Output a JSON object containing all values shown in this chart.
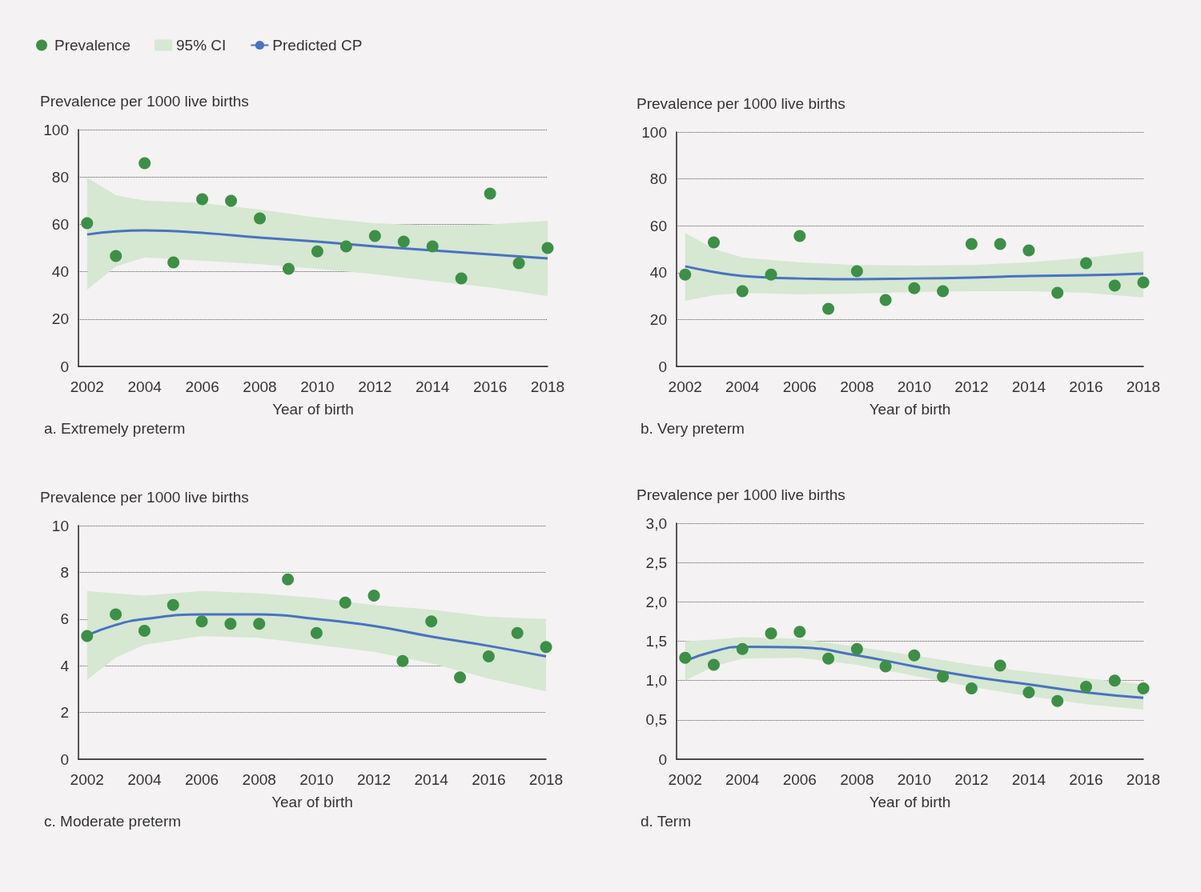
{
  "chart_data": [
    {
      "type": "scatter",
      "title": "a. Extremely preterm",
      "xlabel": "Year of birth",
      "ylabel": "Prevalence per 1000 live births",
      "xlim": [
        2001.7,
        2018
      ],
      "xticks": [
        2002,
        2004,
        2006,
        2008,
        2010,
        2012,
        2014,
        2016,
        2018
      ],
      "ylim": [
        0,
        100
      ],
      "yticks": [
        0,
        20,
        40,
        60,
        80,
        100
      ],
      "grid": "y",
      "legend": "top left",
      "marker": "circle",
      "series": [
        {
          "name": "Prevalence",
          "type": "scatter",
          "color": "#3d8f47",
          "x": [
            2002,
            2003,
            2004,
            2005,
            2006,
            2007,
            2008,
            2009,
            2010,
            2011,
            2012,
            2013,
            2014,
            2015,
            2016,
            2017,
            2018
          ],
          "values": [
            60.5,
            46.6,
            85.8,
            43.9,
            70.6,
            69.9,
            62.5,
            41.2,
            48.6,
            50.7,
            55.1,
            52.7,
            50.7,
            37.2,
            73,
            43.6,
            50
          ]
        },
        {
          "name": "95% CI",
          "type": "area",
          "color": "#d6e7d2"
        },
        {
          "name": "Predicted CP",
          "type": "line",
          "marker": "none",
          "color": "#4a72c0",
          "x": [
            2002,
            2003,
            2004,
            2006,
            2008,
            2010,
            2012,
            2014,
            2016,
            2018
          ],
          "values": [
            55.7,
            57,
            57.4,
            56.4,
            54.4,
            52.7,
            50.7,
            49,
            47.3,
            45.6
          ],
          "lower": [
            32.4,
            42.2,
            46,
            44.6,
            43.2,
            41.2,
            38.9,
            36.1,
            33.4,
            29.7
          ],
          "upper": [
            79.7,
            72.3,
            70,
            69,
            66.2,
            62.8,
            60.5,
            59.5,
            60,
            61.5
          ]
        }
      ]
    },
    {
      "type": "scatter",
      "title": "b. Very preterm",
      "xlabel": "Year of birth",
      "ylabel": "Prevalence per 1000 live births",
      "xlim": [
        2001.7,
        2018
      ],
      "xticks": [
        2002,
        2004,
        2006,
        2008,
        2010,
        2012,
        2014,
        2016,
        2018
      ],
      "ylim": [
        0,
        100
      ],
      "yticks": [
        0,
        20,
        40,
        60,
        80,
        100
      ],
      "grid": "y",
      "marker": "circle",
      "series": [
        {
          "type": "scatter",
          "color": "#3d8f47",
          "x": [
            2002,
            2003,
            2004,
            2005,
            2006,
            2007,
            2008,
            2009,
            2010,
            2011,
            2012,
            2013,
            2014,
            2015,
            2016,
            2017,
            2018
          ],
          "values": [
            39.2,
            52.9,
            32.1,
            39.2,
            55.6,
            24.6,
            40.6,
            28.3,
            33.4,
            32.1,
            52.2,
            52.2,
            49.5,
            31.4,
            44,
            34.5,
            35.8
          ]
        },
        {
          "type": "area",
          "color": "#d6e7d2"
        },
        {
          "type": "line",
          "marker": "none",
          "color": "#4a72c0",
          "x": [
            2002,
            2003,
            2004,
            2006,
            2008,
            2010,
            2012,
            2014,
            2016,
            2018
          ],
          "values": [
            42.7,
            40.3,
            38.6,
            37.5,
            37.2,
            37.5,
            37.9,
            38.6,
            38.9,
            39.6
          ],
          "lower": [
            28,
            30.4,
            31.4,
            30.7,
            31.1,
            31.7,
            32.1,
            32.1,
            31.4,
            29.4
          ],
          "upper": [
            57,
            50.2,
            46.4,
            44.4,
            43.3,
            43,
            43.3,
            44.4,
            46.4,
            49.1
          ]
        }
      ]
    },
    {
      "type": "scatter",
      "title": "c. Moderate preterm",
      "xlabel": "Year of birth",
      "ylabel": "Prevalence per 1000 live births",
      "xlim": [
        2001.7,
        2018
      ],
      "xticks": [
        2002,
        2004,
        2006,
        2008,
        2010,
        2012,
        2014,
        2016,
        2018
      ],
      "ylim": [
        0,
        10
      ],
      "yticks": [
        0,
        2,
        4,
        6,
        8,
        10
      ],
      "grid": "y",
      "marker": "circle",
      "series": [
        {
          "type": "scatter",
          "color": "#3d8f47",
          "x": [
            2002,
            2003,
            2004,
            2005,
            2006,
            2007,
            2008,
            2009,
            2010,
            2011,
            2012,
            2013,
            2014,
            2015,
            2016,
            2017,
            2018
          ],
          "values": [
            5.27,
            6.2,
            5.5,
            6.6,
            5.9,
            5.8,
            5.8,
            7.7,
            5.4,
            6.7,
            7.0,
            4.2,
            5.9,
            3.5,
            4.4,
            5.4,
            4.8
          ]
        },
        {
          "type": "area",
          "color": "#d6e7d2"
        },
        {
          "type": "line",
          "marker": "none",
          "color": "#4a72c0",
          "x": [
            2002,
            2003,
            2004,
            2006,
            2008,
            2010,
            2012,
            2014,
            2016,
            2018
          ],
          "values": [
            5.3,
            5.75,
            6.0,
            6.2,
            6.2,
            6.0,
            5.7,
            5.25,
            4.85,
            4.4
          ],
          "lower": [
            3.4,
            4.35,
            4.9,
            5.27,
            5.2,
            4.9,
            4.6,
            4.1,
            3.45,
            2.9
          ],
          "upper": [
            7.2,
            7.1,
            7.0,
            7.2,
            7.1,
            6.9,
            6.6,
            6.4,
            6.1,
            6.0
          ]
        }
      ]
    },
    {
      "type": "scatter",
      "title": "d. Term",
      "xlabel": "Year of birth",
      "ylabel": "Prevalence per 1000 live births",
      "xlim": [
        2001.7,
        2018
      ],
      "xticks": [
        2002,
        2004,
        2006,
        2008,
        2010,
        2012,
        2014,
        2016,
        2018
      ],
      "ylim": [
        0,
        3
      ],
      "yticks": [
        0,
        {
          "value": 0.5,
          "label": "0,5"
        },
        {
          "value": 1,
          "label": "1,0"
        },
        {
          "value": 1.5,
          "label": "1,5"
        },
        {
          "value": 2,
          "label": "2,0"
        },
        {
          "value": 2.5,
          "label": "2,5"
        },
        {
          "value": 3,
          "label": "3,0"
        }
      ],
      "grid": "y",
      "marker": "circle",
      "series": [
        {
          "type": "scatter",
          "color": "#3d8f47",
          "x": [
            2002,
            2003,
            2004,
            2005,
            2006,
            2007,
            2008,
            2009,
            2010,
            2011,
            2012,
            2013,
            2014,
            2015,
            2016,
            2017,
            2018
          ],
          "values": [
            1.29,
            1.2,
            1.4,
            1.6,
            1.62,
            1.28,
            1.4,
            1.18,
            1.32,
            1.05,
            0.9,
            1.19,
            0.85,
            0.74,
            0.92,
            1.0,
            0.9
          ]
        },
        {
          "type": "area",
          "color": "#d6e7d2"
        },
        {
          "type": "line",
          "marker": "none",
          "color": "#4a72c0",
          "x": [
            2002,
            2003,
            2004,
            2006,
            2008,
            2010,
            2012,
            2014,
            2016,
            2018
          ],
          "values": [
            1.25,
            1.37,
            1.43,
            1.42,
            1.32,
            1.18,
            1.05,
            0.95,
            0.85,
            0.78
          ],
          "lower": [
            1.0,
            1.18,
            1.28,
            1.29,
            1.2,
            1.06,
            0.92,
            0.8,
            0.7,
            0.63
          ],
          "upper": [
            1.5,
            1.52,
            1.55,
            1.53,
            1.43,
            1.32,
            1.2,
            1.11,
            1.03,
            0.95
          ]
        }
      ]
    }
  ]
}
